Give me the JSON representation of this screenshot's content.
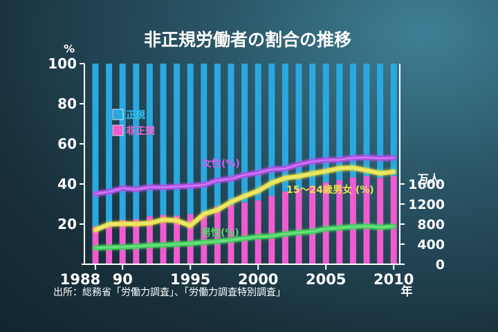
{
  "chart_data": {
    "type": "bar+line",
    "title": "非正規労働者の割合の推移",
    "left_axis_unit": "%",
    "right_axis_unit": "万人",
    "x_axis_unit": "年",
    "left_ylim": [
      0,
      100
    ],
    "left_ticks": [
      "100",
      "80",
      "60",
      "40",
      "20"
    ],
    "right_ylim": [
      0,
      4000
    ],
    "right_ticks": [
      "1600",
      "1200",
      "800",
      "400",
      "0"
    ],
    "x_tick_labels": [
      {
        "year": 1988,
        "label": "1988"
      },
      {
        "year": 1990,
        "label": "90"
      },
      {
        "year": 1995,
        "label": "1995"
      },
      {
        "year": 2000,
        "label": "2000"
      },
      {
        "year": 2005,
        "label": "2005"
      },
      {
        "year": 2010,
        "label": "2010"
      }
    ],
    "years": [
      1988,
      1989,
      1990,
      1991,
      1992,
      1993,
      1994,
      1995,
      1996,
      1997,
      1998,
      1999,
      2000,
      2001,
      2002,
      2003,
      2004,
      2005,
      2006,
      2007,
      2008,
      2009,
      2010
    ],
    "bars": {
      "legend": [
        {
          "name": "正規",
          "color": "#2aa8e0"
        },
        {
          "name": "非正規",
          "color": "#f05bd0"
        }
      ],
      "non_regular_workers_10k": [
        755,
        817,
        881,
        897,
        958,
        986,
        971,
        1001,
        1043,
        1152,
        1173,
        1225,
        1273,
        1360,
        1451,
        1504,
        1564,
        1633,
        1677,
        1732,
        1760,
        1721,
        1755
      ]
    },
    "series": [
      {
        "name": "女性(%)",
        "color": "#b450e8",
        "values": [
          35.1,
          36.1,
          37.9,
          37.3,
          38.4,
          38.3,
          38.7,
          39.0,
          39.6,
          41.8,
          42.6,
          44.5,
          45.6,
          47.3,
          47.7,
          49.8,
          51.2,
          51.9,
          52.1,
          53.0,
          53.2,
          52.8,
          53.0
        ]
      },
      {
        "name": "15～24歳男女 (%)",
        "color": "#e8e04a",
        "values": [
          17.1,
          19.9,
          20.2,
          20.1,
          20.5,
          22.2,
          21.8,
          19.2,
          25.0,
          27.1,
          31.0,
          34.0,
          36.5,
          40.5,
          43.0,
          43.8,
          45.2,
          46.4,
          47.8,
          48.1,
          46.8,
          45.3,
          46.1
        ]
      },
      {
        "name": "男性(%)",
        "color": "#43d35c",
        "values": [
          8.1,
          8.4,
          8.6,
          8.9,
          9.4,
          9.6,
          10.0,
          10.3,
          10.9,
          11.4,
          12.1,
          12.9,
          13.7,
          14.0,
          15.1,
          15.8,
          16.3,
          17.7,
          18.1,
          18.7,
          19.0,
          18.4,
          18.9
        ]
      }
    ]
  },
  "source": "出所：総務省「労働力調査」、「労働力調査特別調査」"
}
